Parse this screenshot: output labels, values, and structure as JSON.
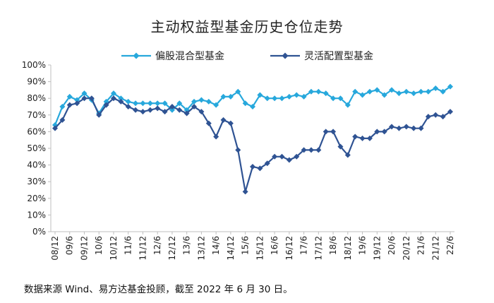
{
  "chart_data": {
    "type": "line",
    "title": "主动权益型基金历史仓位走势",
    "xlabel": "",
    "ylabel": "",
    "ylim": [
      0,
      100
    ],
    "yticks": [
      "0%",
      "10%",
      "20%",
      "30%",
      "40%",
      "50%",
      "60%",
      "70%",
      "80%",
      "90%",
      "100%"
    ],
    "xtick_labels": [
      "08/12",
      "09/6",
      "09/12",
      "10/6",
      "10/12",
      "11/6",
      "11/12",
      "12/6",
      "12/12",
      "13/6",
      "13/12",
      "14/6",
      "14/12",
      "15/6",
      "15/12",
      "16/6",
      "16/12",
      "17/6",
      "17/12",
      "18/6",
      "18/12",
      "19/6",
      "19/12",
      "20/6",
      "20/12",
      "21/6",
      "21/12",
      "22/6"
    ],
    "x": [
      "08/12",
      "09/3",
      "09/6",
      "09/9",
      "09/12",
      "10/3",
      "10/6",
      "10/9",
      "10/12",
      "11/3",
      "11/6",
      "11/9",
      "11/12",
      "12/3",
      "12/6",
      "12/9",
      "12/12",
      "13/3",
      "13/6",
      "13/9",
      "13/12",
      "14/3",
      "14/6",
      "14/9",
      "14/12",
      "15/3",
      "15/6",
      "15/9",
      "15/12",
      "16/3",
      "16/6",
      "16/9",
      "16/12",
      "17/3",
      "17/6",
      "17/9",
      "17/12",
      "18/3",
      "18/6",
      "18/9",
      "18/12",
      "19/3",
      "19/6",
      "19/9",
      "19/12",
      "20/3",
      "20/6",
      "20/9",
      "20/12",
      "21/3",
      "21/6",
      "21/9",
      "21/12",
      "22/3",
      "22/6"
    ],
    "series": [
      {
        "name": "偏股混合型基金",
        "color": "#27a8dc",
        "values": [
          64,
          75,
          81,
          79,
          83,
          79,
          71,
          78,
          83,
          80,
          78,
          77,
          77,
          77,
          77,
          77,
          73,
          77,
          73,
          78,
          79,
          78,
          76,
          81,
          81,
          84,
          77,
          75,
          82,
          80,
          80,
          80,
          81,
          82,
          81,
          84,
          84,
          83,
          80,
          80,
          76,
          84,
          82,
          84,
          85,
          82,
          85,
          83,
          84,
          83,
          84,
          84,
          86,
          84,
          87
        ]
      },
      {
        "name": "灵活配置型基金",
        "color": "#2f5393",
        "values": [
          62,
          67,
          76,
          77,
          80,
          80,
          70,
          76,
          80,
          78,
          75,
          73,
          72,
          73,
          74,
          72,
          75,
          73,
          71,
          75,
          72,
          65,
          57,
          67,
          65,
          49,
          24,
          39,
          38,
          41,
          45,
          45,
          43,
          45,
          49,
          49,
          49,
          60,
          60,
          51,
          46,
          57,
          56,
          56,
          60,
          60,
          63,
          62,
          63,
          62,
          62,
          69,
          70,
          69,
          72
        ]
      }
    ],
    "legend": "top"
  },
  "source_note": "数据来源 Wind、易方达基金投顾，截至 2022 年 6 月 30 日。"
}
